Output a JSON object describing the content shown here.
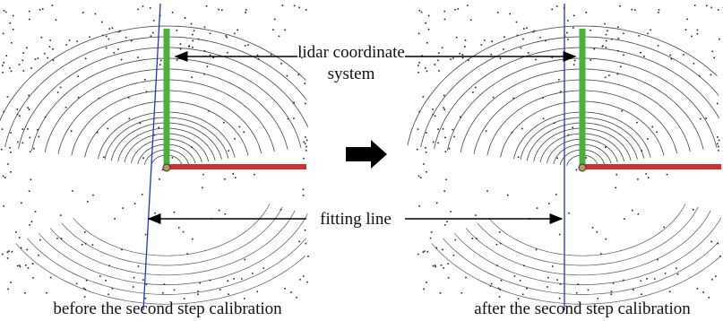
{
  "labels": {
    "coordinate_system": [
      "lidar coordinate",
      "system"
    ],
    "fitting_line": "fitting line"
  },
  "captions": [
    "before the second step calibration",
    "after the second step calibration"
  ]
}
